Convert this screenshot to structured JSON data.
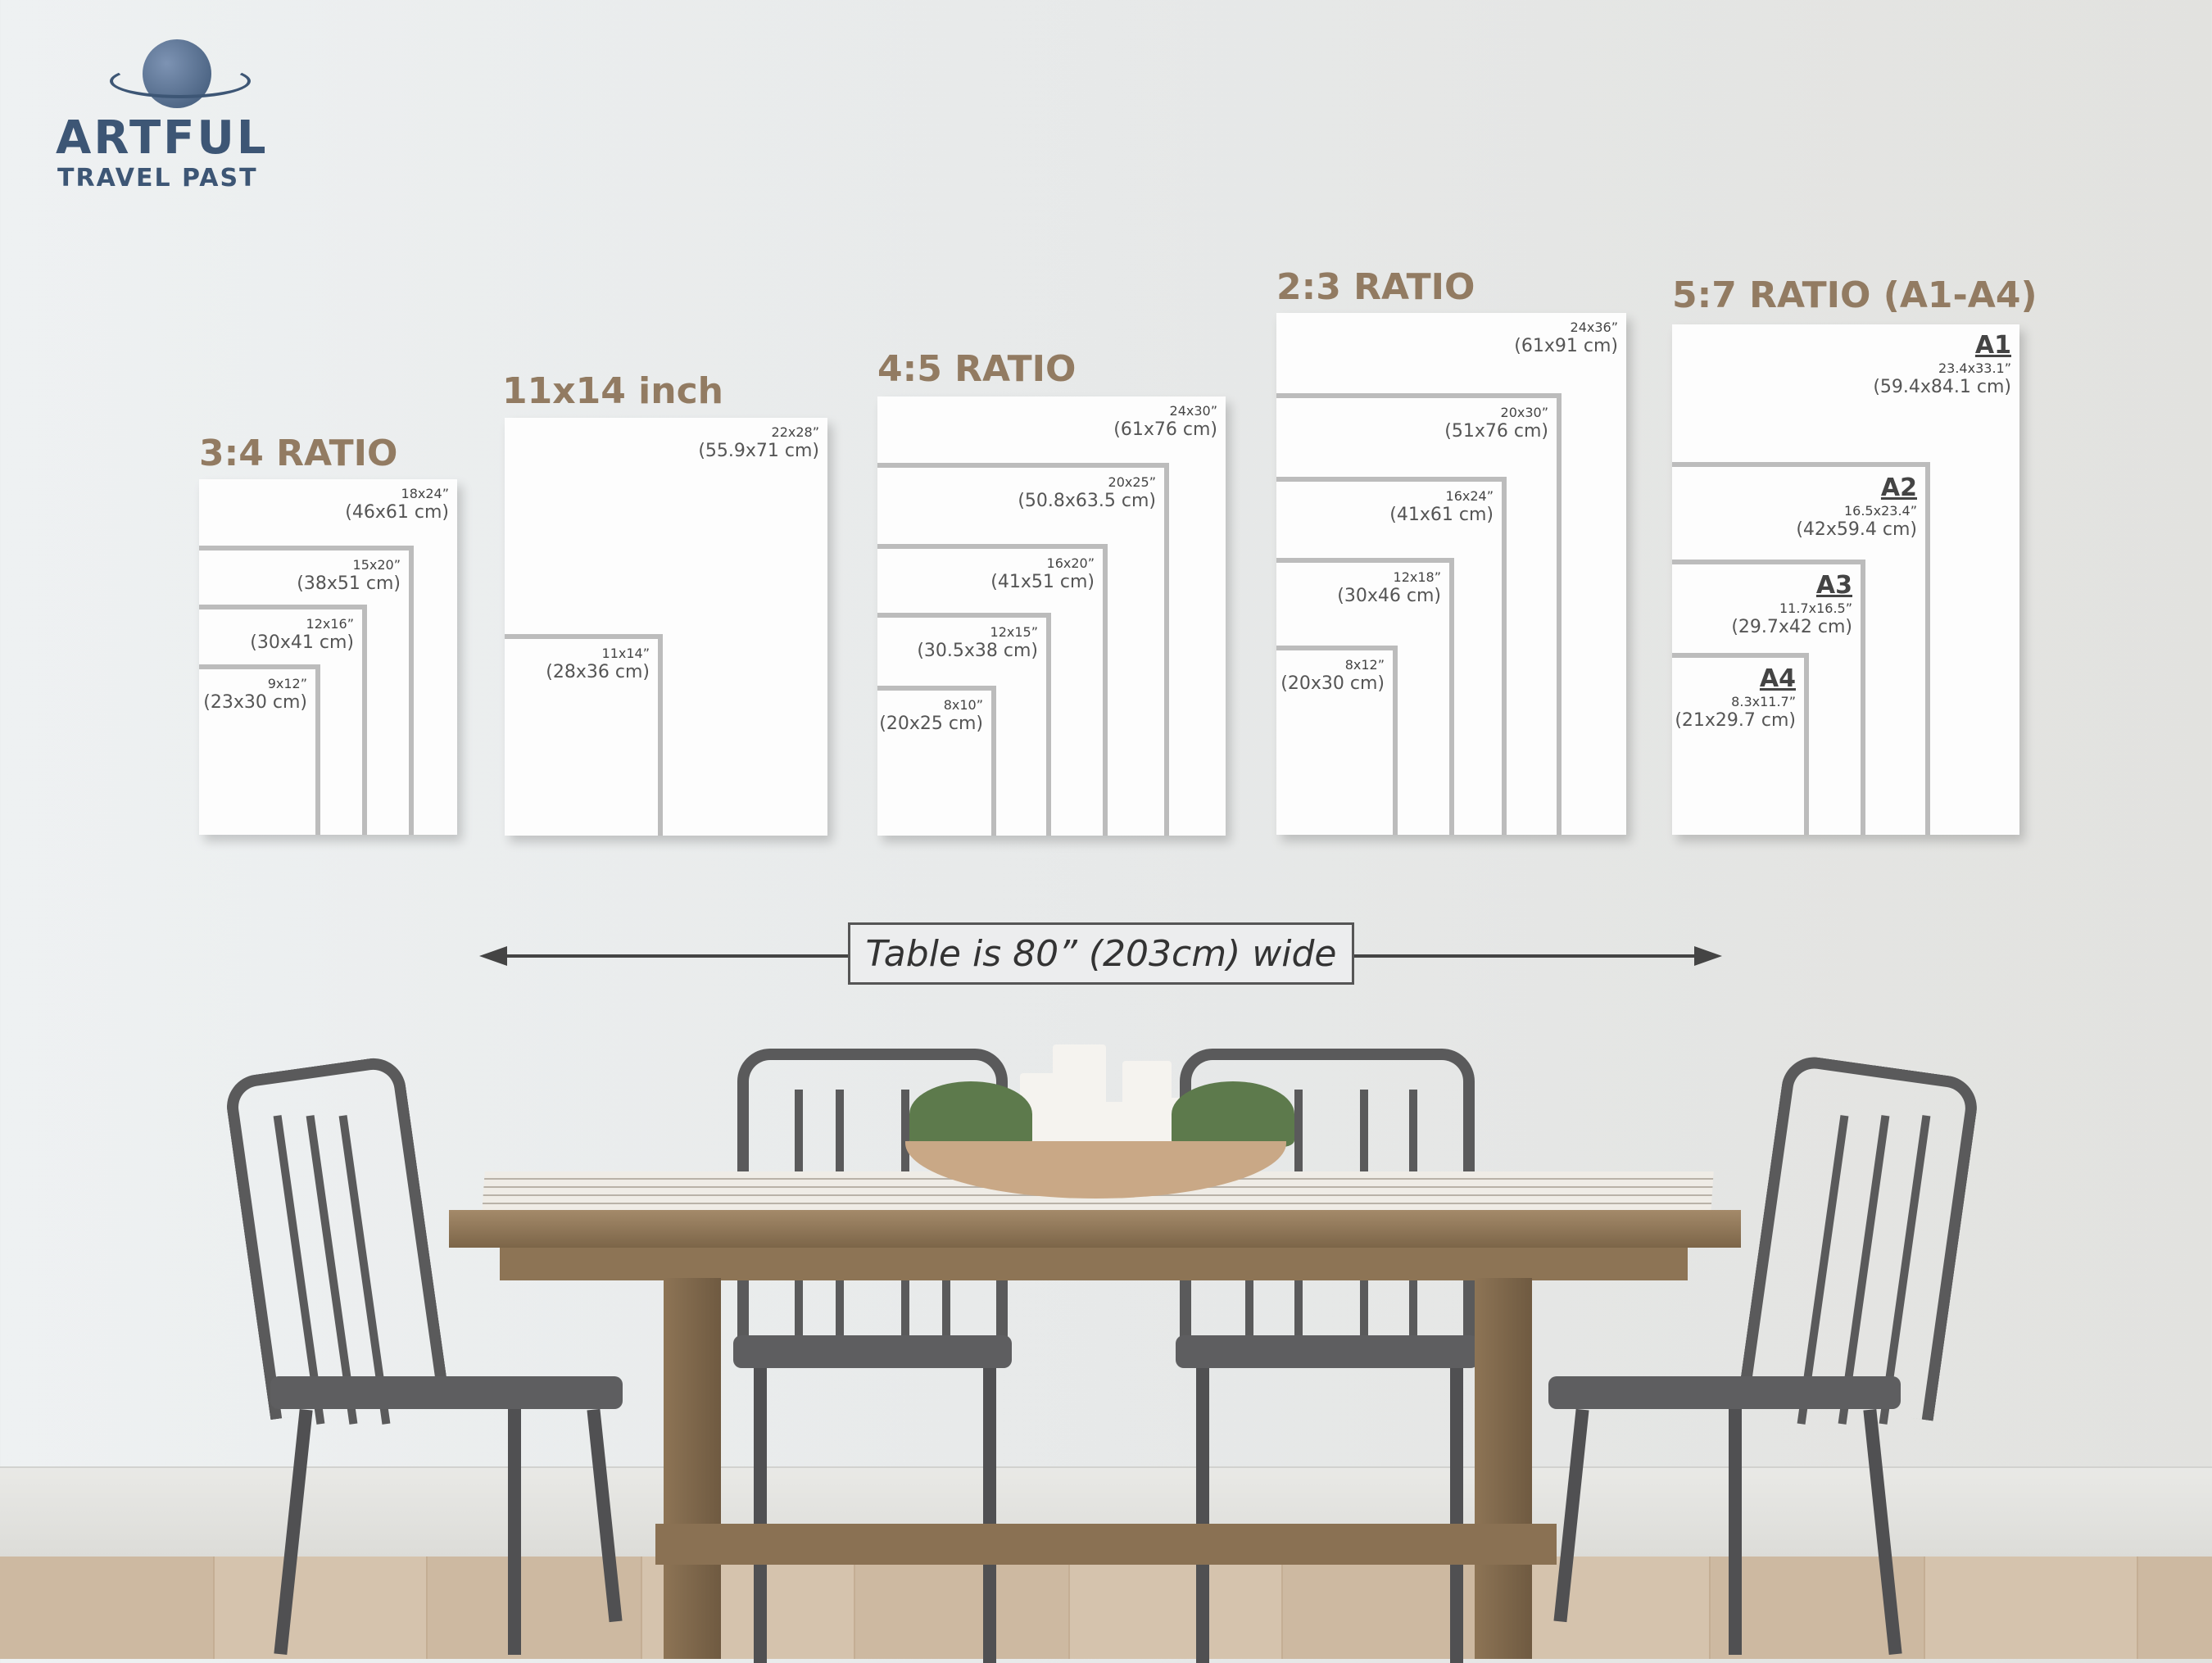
{
  "logo": {
    "name": "ARTFUL",
    "tagline": "TRAVEL PAST",
    "color": "#3d5675"
  },
  "accent_color": "#927b62",
  "groups": [
    {
      "title": "3:4 RATIO",
      "frames": [
        {
          "size": "18x24”",
          "cm": "(46x61 cm)"
        },
        {
          "size": "15x20”",
          "cm": "(38x51 cm)"
        },
        {
          "size": "12x16”",
          "cm": "(30x41 cm)"
        },
        {
          "size": "9x12”",
          "cm": "(23x30 cm)"
        }
      ]
    },
    {
      "title": "11x14 inch",
      "frames": [
        {
          "size": "22x28”",
          "cm": "(55.9x71 cm)"
        },
        {
          "size": "11x14”",
          "cm": "(28x36 cm)"
        }
      ]
    },
    {
      "title": "4:5 RATIO",
      "frames": [
        {
          "size": "24x30”",
          "cm": "(61x76 cm)"
        },
        {
          "size": "20x25”",
          "cm": "(50.8x63.5 cm)"
        },
        {
          "size": "16x20”",
          "cm": "(41x51 cm)"
        },
        {
          "size": "12x15”",
          "cm": "(30.5x38 cm)"
        },
        {
          "size": "8x10”",
          "cm": "(20x25 cm)"
        }
      ]
    },
    {
      "title": "2:3 RATIO",
      "frames": [
        {
          "size": "24x36”",
          "cm": "(61x91 cm)"
        },
        {
          "size": "20x30”",
          "cm": "(51x76 cm)"
        },
        {
          "size": "16x24”",
          "cm": "(41x61 cm)"
        },
        {
          "size": "12x18”",
          "cm": "(30x46 cm)"
        },
        {
          "size": "8x12”",
          "cm": "(20x30 cm)"
        }
      ]
    },
    {
      "title": "5:7 RATIO (A1-A4)",
      "frames": [
        {
          "code": "A1",
          "size": "23.4x33.1”",
          "cm": "(59.4x84.1 cm)"
        },
        {
          "code": "A2",
          "size": "16.5x23.4”",
          "cm": "(42x59.4 cm)"
        },
        {
          "code": "A3",
          "size": "11.7x16.5”",
          "cm": "(29.7x42 cm)"
        },
        {
          "code": "A4",
          "size": "8.3x11.7”",
          "cm": "(21x29.7 cm)"
        }
      ]
    }
  ],
  "banner": {
    "text": "Table is 80” (203cm) wide"
  }
}
